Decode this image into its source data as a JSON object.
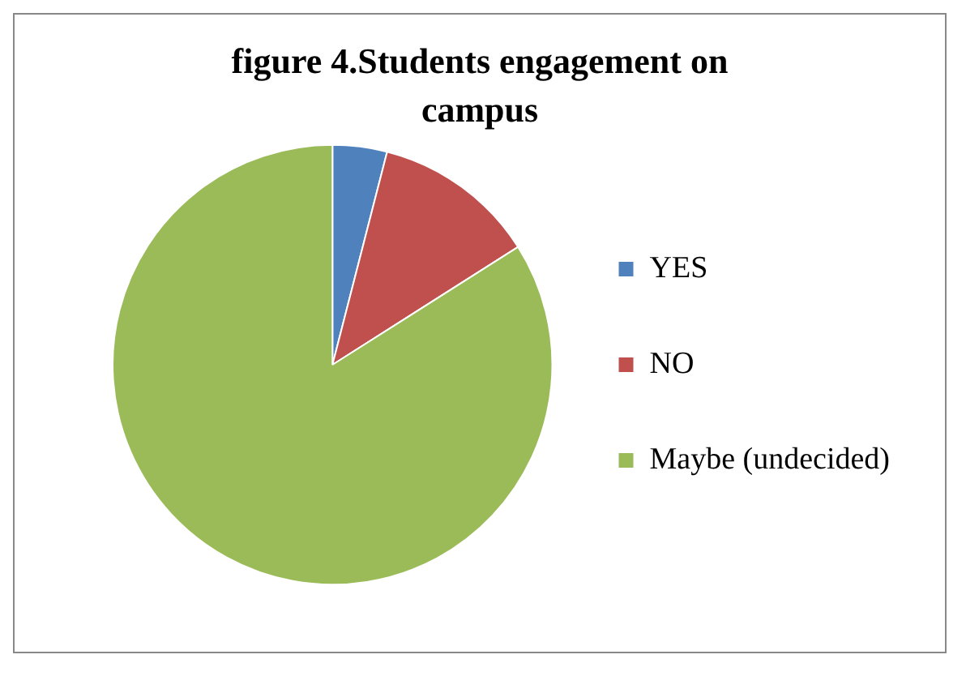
{
  "chart_data": {
    "type": "pie",
    "title": "figure 4.Students engagement on campus",
    "categories": [
      "YES",
      "NO",
      "Maybe (undecided)"
    ],
    "values": [
      4,
      12,
      84
    ],
    "colors": [
      "#4f81bd",
      "#c0504d",
      "#9bbb59"
    ],
    "legend": "right"
  }
}
